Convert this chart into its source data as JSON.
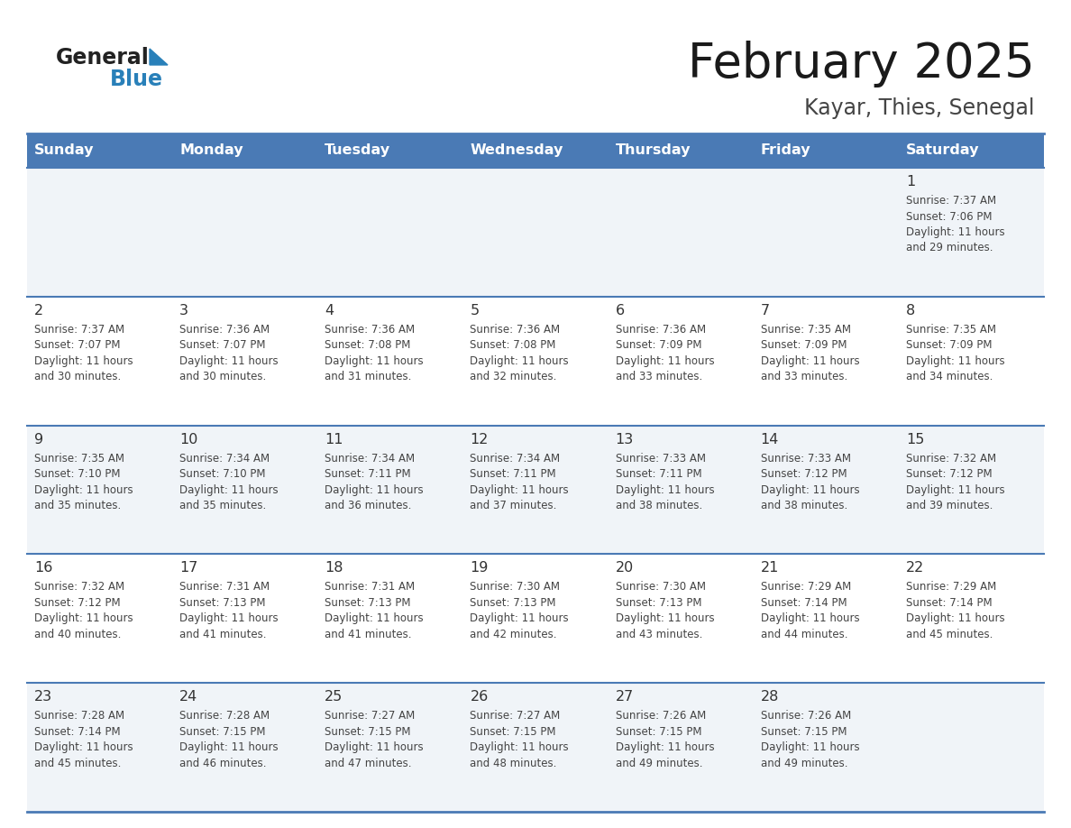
{
  "title": "February 2025",
  "subtitle": "Kayar, Thies, Senegal",
  "header_color": "#4a7ab5",
  "header_text_color": "#ffffff",
  "days_of_week": [
    "Sunday",
    "Monday",
    "Tuesday",
    "Wednesday",
    "Thursday",
    "Friday",
    "Saturday"
  ],
  "row_bg_color": "#f0f4f8",
  "row_bg_alt": "#ffffff",
  "border_color": "#4a7ab5",
  "cell_text_color": "#444444",
  "day_num_color": "#333333",
  "logo_general_color": "#222222",
  "logo_blue_color": "#2980b9",
  "logo_triangle_color": "#2980b9",
  "calendar_data": [
    [
      null,
      null,
      null,
      null,
      null,
      null,
      {
        "day": 1,
        "sunrise": "7:37 AM",
        "sunset": "7:06 PM",
        "daylight": "11 hours and 29 minutes."
      }
    ],
    [
      {
        "day": 2,
        "sunrise": "7:37 AM",
        "sunset": "7:07 PM",
        "daylight": "11 hours and 30 minutes."
      },
      {
        "day": 3,
        "sunrise": "7:36 AM",
        "sunset": "7:07 PM",
        "daylight": "11 hours and 30 minutes."
      },
      {
        "day": 4,
        "sunrise": "7:36 AM",
        "sunset": "7:08 PM",
        "daylight": "11 hours and 31 minutes."
      },
      {
        "day": 5,
        "sunrise": "7:36 AM",
        "sunset": "7:08 PM",
        "daylight": "11 hours and 32 minutes."
      },
      {
        "day": 6,
        "sunrise": "7:36 AM",
        "sunset": "7:09 PM",
        "daylight": "11 hours and 33 minutes."
      },
      {
        "day": 7,
        "sunrise": "7:35 AM",
        "sunset": "7:09 PM",
        "daylight": "11 hours and 33 minutes."
      },
      {
        "day": 8,
        "sunrise": "7:35 AM",
        "sunset": "7:09 PM",
        "daylight": "11 hours and 34 minutes."
      }
    ],
    [
      {
        "day": 9,
        "sunrise": "7:35 AM",
        "sunset": "7:10 PM",
        "daylight": "11 hours and 35 minutes."
      },
      {
        "day": 10,
        "sunrise": "7:34 AM",
        "sunset": "7:10 PM",
        "daylight": "11 hours and 35 minutes."
      },
      {
        "day": 11,
        "sunrise": "7:34 AM",
        "sunset": "7:11 PM",
        "daylight": "11 hours and 36 minutes."
      },
      {
        "day": 12,
        "sunrise": "7:34 AM",
        "sunset": "7:11 PM",
        "daylight": "11 hours and 37 minutes."
      },
      {
        "day": 13,
        "sunrise": "7:33 AM",
        "sunset": "7:11 PM",
        "daylight": "11 hours and 38 minutes."
      },
      {
        "day": 14,
        "sunrise": "7:33 AM",
        "sunset": "7:12 PM",
        "daylight": "11 hours and 38 minutes."
      },
      {
        "day": 15,
        "sunrise": "7:32 AM",
        "sunset": "7:12 PM",
        "daylight": "11 hours and 39 minutes."
      }
    ],
    [
      {
        "day": 16,
        "sunrise": "7:32 AM",
        "sunset": "7:12 PM",
        "daylight": "11 hours and 40 minutes."
      },
      {
        "day": 17,
        "sunrise": "7:31 AM",
        "sunset": "7:13 PM",
        "daylight": "11 hours and 41 minutes."
      },
      {
        "day": 18,
        "sunrise": "7:31 AM",
        "sunset": "7:13 PM",
        "daylight": "11 hours and 41 minutes."
      },
      {
        "day": 19,
        "sunrise": "7:30 AM",
        "sunset": "7:13 PM",
        "daylight": "11 hours and 42 minutes."
      },
      {
        "day": 20,
        "sunrise": "7:30 AM",
        "sunset": "7:13 PM",
        "daylight": "11 hours and 43 minutes."
      },
      {
        "day": 21,
        "sunrise": "7:29 AM",
        "sunset": "7:14 PM",
        "daylight": "11 hours and 44 minutes."
      },
      {
        "day": 22,
        "sunrise": "7:29 AM",
        "sunset": "7:14 PM",
        "daylight": "11 hours and 45 minutes."
      }
    ],
    [
      {
        "day": 23,
        "sunrise": "7:28 AM",
        "sunset": "7:14 PM",
        "daylight": "11 hours and 45 minutes."
      },
      {
        "day": 24,
        "sunrise": "7:28 AM",
        "sunset": "7:15 PM",
        "daylight": "11 hours and 46 minutes."
      },
      {
        "day": 25,
        "sunrise": "7:27 AM",
        "sunset": "7:15 PM",
        "daylight": "11 hours and 47 minutes."
      },
      {
        "day": 26,
        "sunrise": "7:27 AM",
        "sunset": "7:15 PM",
        "daylight": "11 hours and 48 minutes."
      },
      {
        "day": 27,
        "sunrise": "7:26 AM",
        "sunset": "7:15 PM",
        "daylight": "11 hours and 49 minutes."
      },
      {
        "day": 28,
        "sunrise": "7:26 AM",
        "sunset": "7:15 PM",
        "daylight": "11 hours and 49 minutes."
      },
      null
    ]
  ]
}
